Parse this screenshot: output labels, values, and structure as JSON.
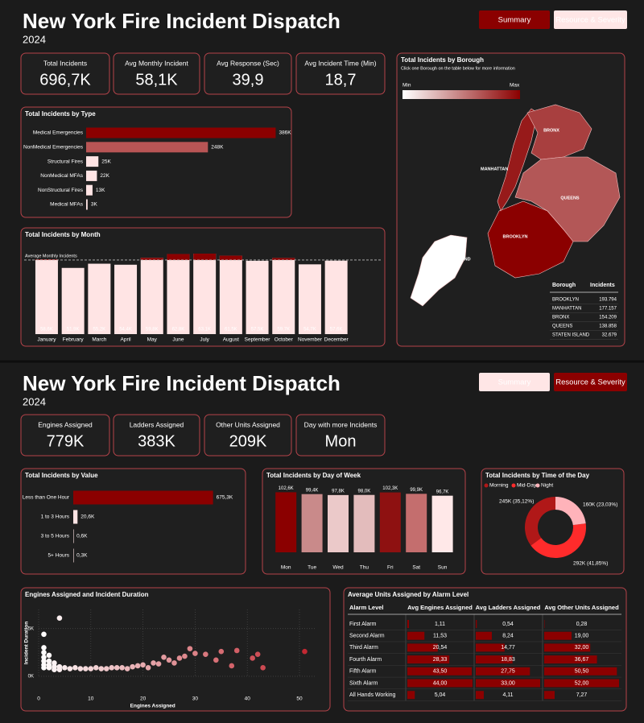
{
  "dashboards": [
    {
      "title": "New York Fire Incident Dispatch",
      "subtitle": "2024",
      "buttons": [
        "Summary",
        "Resource & Severity"
      ],
      "active_button": 0,
      "kpis": [
        {
          "label": "Total Incidents",
          "value": "696,7K"
        },
        {
          "label": "Avg Monthly Incident",
          "value": "58,1K"
        },
        {
          "label": "Avg Response (Sec)",
          "value": "39,9"
        },
        {
          "label": "Avg Incident Time (Min)",
          "value": "18,7"
        }
      ]
    },
    {
      "title": "New York Fire Incident Dispatch",
      "subtitle": "2024",
      "buttons": [
        "Summary",
        "Resource & Severity"
      ],
      "active_button": 1,
      "kpis": [
        {
          "label": "Engines Assigned",
          "value": "779K"
        },
        {
          "label": "Ladders Assigned",
          "value": "383K"
        },
        {
          "label": "Other Units Assigned",
          "value": "209K"
        },
        {
          "label": "Day with more Incidents",
          "value": "Mon"
        }
      ]
    }
  ],
  "chart_data": [
    {
      "type": "hbar",
      "title": "Total Incidents by Type",
      "categories": [
        "Medical Emergencies",
        "NonMedical Emergencies",
        "Structural Fires",
        "NonMedical MFAs",
        "NonStructural Fires",
        "Medical MFAs"
      ],
      "values": [
        386,
        248,
        25,
        22,
        13,
        3
      ],
      "value_labels": [
        "386K",
        "248K",
        "25K",
        "22K",
        "13K",
        "3K"
      ],
      "colors": [
        "#8b0000",
        "#b85555",
        "#ffe4e4",
        "#ffe4e4",
        "#ffe4e4",
        "#ffe4e4"
      ],
      "xlim": [
        0,
        400
      ]
    },
    {
      "type": "column",
      "title": "Total Incidents by Month",
      "categories": [
        "January",
        "February",
        "March",
        "April",
        "May",
        "June",
        "July",
        "August",
        "September",
        "October",
        "November",
        "December"
      ],
      "values": [
        58.6,
        51.9,
        55.2,
        54.4,
        59.8,
        62.8,
        63.1,
        61.5,
        57.5,
        59.7,
        54.7,
        57.6
      ],
      "value_labels": [
        "58,6K",
        "51,9K",
        "55,2K",
        "54,4K",
        "59,8K",
        "62,8K",
        "63,1K",
        "61,5K",
        "57,5K",
        "59,7K",
        "54,7K",
        "57,6K"
      ],
      "color": "#ffe4e4",
      "highlight_color": "#8b0000",
      "reference_line": {
        "label": "Average Monthly Incidents",
        "value": 58.1
      },
      "ylim": [
        0,
        65
      ]
    },
    {
      "type": "map",
      "title": "Total Incidents by Borough",
      "subtitle": "Click one Borough on the table below for more information",
      "legend_min": "Min",
      "legend_max": "Max",
      "color_min": "#ffffff",
      "color_max": "#8b0000",
      "table_header": [
        "Borough",
        "Incidents"
      ],
      "categories": [
        "BROOKLYN",
        "MANHATTAN",
        "BRONX",
        "QUEENS",
        "STATEN ISLAND"
      ],
      "values": [
        193794,
        177157,
        154209,
        138858,
        32679
      ],
      "value_labels": [
        "193.794",
        "177.157",
        "154.209",
        "138.858",
        "32.679"
      ]
    },
    {
      "type": "hbar",
      "title": "Total Incidents by Value",
      "categories": [
        "Less than One Hour",
        "1 to 3 Hours",
        "3 to 5 Hours",
        "5+ Hours"
      ],
      "values": [
        675.3,
        20.6,
        0.6,
        0.3
      ],
      "value_labels": [
        "675,3K",
        "20,6K",
        "0,6K",
        "0,3K"
      ],
      "colors": [
        "#8b0000",
        "#ffe4e4",
        "#ffe4e4",
        "#ffe4e4"
      ],
      "xlim": [
        0,
        700
      ]
    },
    {
      "type": "column",
      "title": "Total Incidents by Day of Week",
      "categories": [
        "Mon",
        "Tue",
        "Wed",
        "Thu",
        "Fri",
        "Sat",
        "Sun"
      ],
      "values": [
        102.6,
        99.4,
        97.8,
        98.0,
        102.3,
        99.9,
        96.7
      ],
      "value_labels": [
        "102,6K",
        "99,4K",
        "97,8K",
        "98,0K",
        "102,3K",
        "99,9K",
        "96,7K"
      ],
      "colors": [
        "#8b0000",
        "#c98a8a",
        "#ebc9c9",
        "#e3bcbc",
        "#8e1111",
        "#c46e6e",
        "#ffe8e8"
      ],
      "ylim": [
        0,
        110
      ]
    },
    {
      "type": "donut",
      "title": "Total Incidents by Time of the Day",
      "categories": [
        "Morning",
        "Mid-Day",
        "Night"
      ],
      "values": [
        245,
        292,
        160
      ],
      "value_labels": [
        "245K (35,12%)",
        "292K (41,85%)",
        "160K (23,03%)"
      ],
      "colors": [
        "#b01818",
        "#ff2b2b",
        "#ffb3ba"
      ]
    },
    {
      "type": "scatter",
      "title": "Engines Assigned and Incident Duration",
      "x_label": "Engines Assigned",
      "y_label": "Incident Duration",
      "x": [
        1,
        1,
        1,
        1,
        1,
        1,
        1,
        2,
        2,
        2,
        2,
        3,
        3,
        3,
        4,
        4,
        4,
        5,
        6,
        7,
        8,
        9,
        10,
        11,
        12,
        13,
        14,
        15,
        16,
        17,
        18,
        19,
        20,
        21,
        22,
        23,
        24,
        25,
        26,
        27,
        28,
        29,
        30,
        32,
        34,
        35,
        37,
        38,
        41,
        42,
        43,
        51
      ],
      "y": [
        4.4,
        3.0,
        2.5,
        2.0,
        1.6,
        1.2,
        0.9,
        2.2,
        1.6,
        1.2,
        0.9,
        1.4,
        1.0,
        0.7,
        6.1,
        1.0,
        0.7,
        0.9,
        0.8,
        0.9,
        0.8,
        0.8,
        0.8,
        0.9,
        0.8,
        0.8,
        0.9,
        0.9,
        0.9,
        0.8,
        1.0,
        1.1,
        1.2,
        0.9,
        1.4,
        1.3,
        2.0,
        1.7,
        1.4,
        1.9,
        2.1,
        2.9,
        2.4,
        2.3,
        1.7,
        2.6,
        1.1,
        2.7,
        1.9,
        2.3,
        0.9,
        2.6
      ],
      "xlim": [
        0,
        53
      ],
      "ylim": [
        0,
        7
      ],
      "xticks": [
        0,
        10,
        20,
        30,
        40,
        50
      ],
      "yticks": [
        {
          "value": 0,
          "label": "0K"
        },
        {
          "value": 5,
          "label": "5K"
        }
      ],
      "color_min": "#ffffff",
      "color_max": "#c0202a",
      "grid": true
    },
    {
      "type": "table-bars",
      "title": "Average Units Assigned by Alarm Level",
      "header": "Alarm Level",
      "categories": [
        "First Alarm",
        "Second Alarm",
        "Third Alarm",
        "Fourth Alarm",
        "Fifth Alarm",
        "Sixth Alarm",
        "All Hands Working"
      ],
      "color": "#8b0000",
      "series": [
        {
          "name": "Avg Engines Assigned",
          "values": [
            1.11,
            11.53,
            20.54,
            28.33,
            43.5,
            44.0,
            5.04
          ],
          "value_labels": [
            "1,11",
            "11,53",
            "20,54",
            "28,33",
            "43,50",
            "44,00",
            "5,04"
          ]
        },
        {
          "name": "Avg Ladders Assigned",
          "values": [
            0.54,
            8.24,
            14.77,
            18.83,
            27.75,
            33.0,
            4.11
          ],
          "value_labels": [
            "0,54",
            "8,24",
            "14,77",
            "18,83",
            "27,75",
            "33,00",
            "4,11"
          ]
        },
        {
          "name": "Avg Other Units Assigned",
          "values": [
            0.28,
            19.0,
            32.0,
            36.67,
            50.5,
            52.0,
            7.27
          ],
          "value_labels": [
            "0,28",
            "19,00",
            "32,00",
            "36,67",
            "50,50",
            "52,00",
            "7,27"
          ]
        }
      ]
    }
  ]
}
